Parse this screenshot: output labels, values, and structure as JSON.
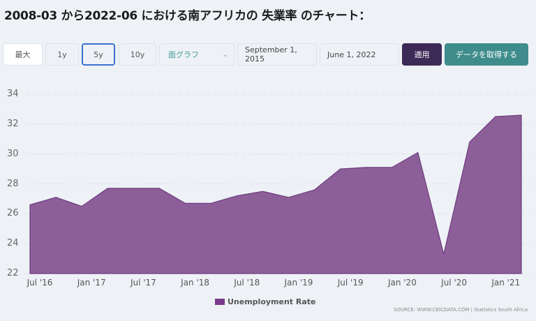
{
  "header": {
    "title": "2008-03 から2022-06 における南アフリカの 失業率 のチャート："
  },
  "toolbar": {
    "range_buttons": [
      {
        "label": "最大",
        "active": false
      },
      {
        "label": "1y",
        "active": false
      },
      {
        "label": "5y",
        "active": true
      },
      {
        "label": "10y",
        "active": false
      }
    ],
    "chart_type_select": {
      "value": "面グラフ",
      "icon": "chevron-down-icon"
    },
    "start_date": "September 1, 2015",
    "end_date": "June 1, 2022",
    "apply_label": "適用",
    "fetch_label": "データを取得する"
  },
  "colors": {
    "area_fill": "#8d5f99",
    "area_line": "#6e3c80",
    "legend_swatch": "#7a3a8c",
    "apply_button": "#3d2a56",
    "fetch_button": "#3e8c8c",
    "active_border": "#3a6fd0",
    "background": "#eef2f6"
  },
  "chart": {
    "y_ticks": [
      "34",
      "32",
      "30",
      "28",
      "26",
      "24",
      "22"
    ],
    "x_ticks": [
      "Jul '16",
      "Jan '17",
      "Jul '17",
      "Jan '18",
      "Jul '18",
      "Jan '19",
      "Jul '19",
      "Jan '20",
      "Jul '20",
      "Jan '21"
    ],
    "legend_label": "Unemployment Rate",
    "source": "SOURCE: WWW.CEICDATA.COM | Statistics South Africa"
  },
  "chart_data": {
    "type": "area",
    "title": "2008-03 から2022-06 における南アフリカの 失業率 のチャート：",
    "xlabel": "",
    "ylabel": "",
    "ylim": [
      22,
      34
    ],
    "y_ticks": [
      22,
      24,
      26,
      28,
      30,
      32,
      34
    ],
    "grid": true,
    "legend_position": "bottom",
    "x": [
      "2016-06",
      "2016-09",
      "2016-12",
      "2017-03",
      "2017-06",
      "2017-09",
      "2017-12",
      "2018-03",
      "2018-06",
      "2018-09",
      "2018-12",
      "2019-03",
      "2019-06",
      "2019-09",
      "2019-12",
      "2020-03",
      "2020-06",
      "2020-09",
      "2020-12",
      "2021-03"
    ],
    "series": [
      {
        "name": "Unemployment Rate",
        "values": [
          26.6,
          27.1,
          26.5,
          27.7,
          27.7,
          27.7,
          26.7,
          26.7,
          27.2,
          27.5,
          27.1,
          27.6,
          29.0,
          29.1,
          29.1,
          30.1,
          23.3,
          30.8,
          32.5,
          32.6
        ]
      }
    ]
  }
}
